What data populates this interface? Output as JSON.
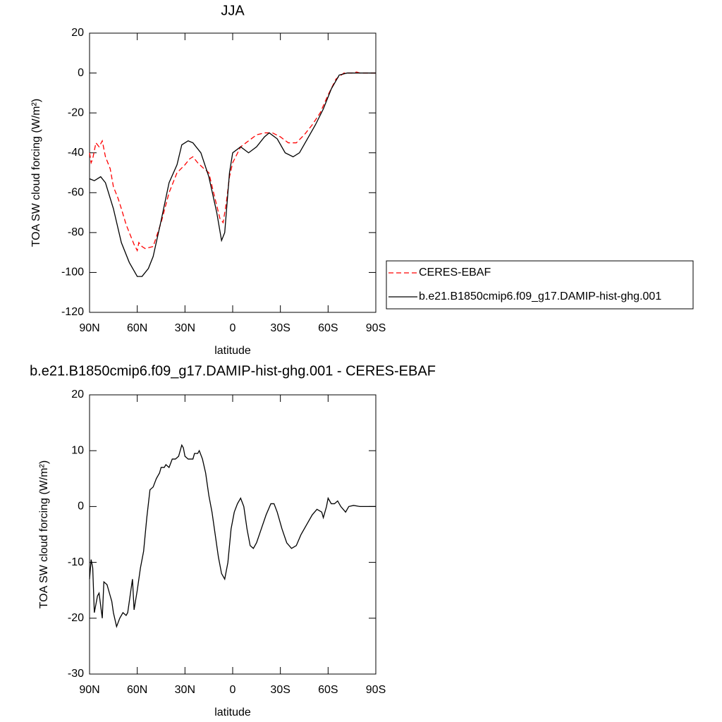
{
  "chart_data": [
    {
      "type": "line",
      "title": "JJA",
      "x_label": "latitude",
      "y_label": "TOA SW cloud forcing (W/m²)",
      "xlim": [
        90,
        -90
      ],
      "xticks": [
        {
          "value": 90,
          "label": "90N"
        },
        {
          "value": 60,
          "label": "60N"
        },
        {
          "value": 30,
          "label": "30N"
        },
        0,
        {
          "value": -30,
          "label": "30S"
        },
        {
          "value": -60,
          "label": "60S"
        },
        {
          "value": -90,
          "label": "90S"
        }
      ],
      "ylim": [
        -120,
        20
      ],
      "yticks": [
        -120,
        -100,
        -80,
        -60,
        -40,
        -20,
        0,
        20
      ],
      "legend": "right",
      "series": [
        {
          "name": "CERES-EBAF",
          "color": "#ff0000",
          "line_style": "dashed",
          "x": [
            90,
            89,
            88,
            86,
            84,
            82,
            80,
            77,
            75,
            72,
            70,
            67,
            64,
            62,
            60,
            59,
            57,
            55,
            50,
            45,
            40,
            35,
            30,
            27,
            25,
            22,
            18,
            15,
            12,
            8,
            6,
            4,
            2,
            0,
            -5,
            -10,
            -15,
            -20,
            -25,
            -30,
            -35,
            -40,
            -45,
            -50,
            -55,
            -60,
            -65,
            -70,
            -75,
            -78,
            -80,
            -90
          ],
          "values": [
            -40,
            -45,
            -43,
            -35,
            -37,
            -34,
            -42,
            -48,
            -57,
            -63,
            -68,
            -76,
            -82,
            -86,
            -89,
            -85,
            -87,
            -88,
            -87,
            -75,
            -60,
            -50,
            -46,
            -43,
            -42,
            -45,
            -48,
            -50,
            -60,
            -73,
            -75,
            -65,
            -52,
            -45,
            -37,
            -34,
            -31,
            -30,
            -30,
            -32,
            -35,
            -35,
            -31,
            -26,
            -20,
            -11,
            -3,
            0,
            0,
            0.5,
            0,
            0
          ]
        },
        {
          "name": "b.e21.B1850cmip6.f09_g17.DAMIP-hist-ghg.001",
          "color": "#000000",
          "line_style": "solid",
          "x": [
            90,
            87,
            83,
            80,
            75,
            70,
            65,
            60,
            57,
            53,
            50,
            45,
            40,
            35,
            32,
            28,
            25,
            20,
            15,
            10,
            7,
            5,
            2,
            0,
            -5,
            -10,
            -15,
            -20,
            -23,
            -28,
            -33,
            -38,
            -42,
            -47,
            -52,
            -57,
            -62,
            -67,
            -72,
            -80,
            -90
          ],
          "values": [
            -53,
            -54,
            -52,
            -55,
            -68,
            -85,
            -95,
            -102,
            -102,
            -98,
            -92,
            -74,
            -55,
            -46,
            -36,
            -34,
            -35,
            -40,
            -52,
            -70,
            -84,
            -80,
            -50,
            -40,
            -37,
            -40,
            -37,
            -32,
            -30,
            -33,
            -40,
            -42,
            -40,
            -33,
            -26,
            -18,
            -8,
            -1,
            0,
            0,
            0
          ]
        }
      ]
    },
    {
      "type": "line",
      "title": "b.e21.B1850cmip6.f09_g17.DAMIP-hist-ghg.001 - CERES-EBAF",
      "x_label": "latitude",
      "y_label": "TOA SW cloud forcing (W/m²)",
      "xlim": [
        90,
        -90
      ],
      "xticks": [
        {
          "value": 90,
          "label": "90N"
        },
        {
          "value": 60,
          "label": "60N"
        },
        {
          "value": 30,
          "label": "30N"
        },
        0,
        {
          "value": -30,
          "label": "30S"
        },
        {
          "value": -60,
          "label": "60S"
        },
        {
          "value": -90,
          "label": "90S"
        }
      ],
      "ylim": [
        -30,
        20
      ],
      "yticks": [
        -30,
        -20,
        -10,
        0,
        10,
        20
      ],
      "series": [
        {
          "color": "#000000",
          "line_style": "solid",
          "x": [
            90,
            89,
            88,
            87,
            85,
            84,
            82,
            81,
            79,
            77,
            76,
            75,
            73,
            71,
            69,
            67,
            66,
            64,
            63,
            62,
            60,
            58,
            56,
            54,
            52,
            50,
            48,
            46,
            45,
            43,
            42,
            40,
            38,
            36,
            34,
            33,
            32,
            31,
            30,
            28,
            25,
            24,
            22,
            21,
            19,
            17,
            15,
            13,
            11,
            9,
            7,
            5,
            3,
            1,
            -1,
            -3,
            -5,
            -7,
            -9,
            -11,
            -13,
            -15,
            -18,
            -21,
            -24,
            -26,
            -28,
            -31,
            -34,
            -37,
            -40,
            -43,
            -47,
            -50,
            -53,
            -56,
            -57,
            -59,
            -60,
            -62,
            -64,
            -66,
            -68,
            -71,
            -73,
            -76,
            -80,
            -90
          ],
          "values": [
            -13,
            -9.5,
            -11,
            -19,
            -16,
            -15.5,
            -20,
            -13.5,
            -14,
            -16,
            -17,
            -19,
            -21.5,
            -20,
            -19,
            -19.5,
            -19,
            -15,
            -13,
            -18.5,
            -15,
            -11,
            -8,
            -2,
            3,
            3.5,
            5,
            6,
            7,
            7,
            7.5,
            7,
            8.5,
            8.5,
            9,
            10,
            11,
            10.5,
            9,
            8.5,
            8.5,
            9.5,
            9.5,
            10,
            8.5,
            6,
            2,
            -1,
            -5,
            -9,
            -12,
            -13,
            -10,
            -4,
            -1,
            0.5,
            1.5,
            0,
            -4,
            -7,
            -7.5,
            -6.5,
            -4,
            -1.5,
            0.5,
            0.5,
            -1,
            -4,
            -6.5,
            -7.5,
            -7,
            -5,
            -3,
            -1.5,
            -0.5,
            -1,
            -2,
            0,
            1.5,
            0.5,
            0.5,
            1,
            0,
            -1,
            0,
            0.2,
            0,
            0
          ]
        }
      ]
    }
  ]
}
